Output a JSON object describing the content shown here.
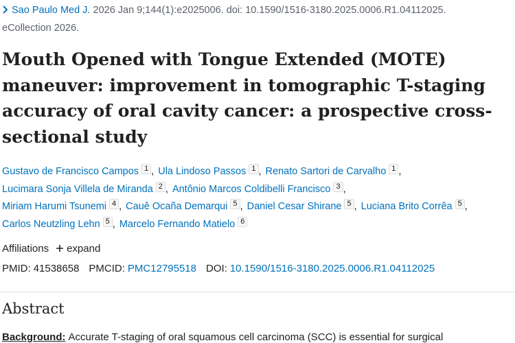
{
  "citation": {
    "journal": "Sao Paulo Med J.",
    "details": "2026 Jan 9;144(1):e2025006. doi: 10.1590/1516-3180.2025.0006.R1.04112025.",
    "ecollection": "eCollection 2026."
  },
  "title": "Mouth Opened with Tongue Extended (MOTE) maneuver: improvement in tomographic T-staging accuracy of oral cavity cancer: a prospective cross-sectional study",
  "authors": [
    {
      "name": "Gustavo de Francisco Campos",
      "affiliation": 1
    },
    {
      "name": "Ula Lindoso Passos",
      "affiliation": 1
    },
    {
      "name": "Renato Sartori de Carvalho",
      "affiliation": 1
    },
    {
      "name": "Lucimara Sonja Villela de Miranda",
      "affiliation": 2
    },
    {
      "name": "Antônio Marcos Coldibelli Francisco",
      "affiliation": 3
    },
    {
      "name": "Miriam Harumi Tsunemi",
      "affiliation": 4
    },
    {
      "name": "Cauê Ocaña Demarqui",
      "affiliation": 5
    },
    {
      "name": "Daniel Cesar Shirane",
      "affiliation": 5
    },
    {
      "name": "Luciana Brito Corrêa",
      "affiliation": 5
    },
    {
      "name": "Carlos Neutzling Lehn",
      "affiliation": 5
    },
    {
      "name": "Marcelo Fernando Matielo",
      "affiliation": 6
    }
  ],
  "affiliations": {
    "label": "Affiliations",
    "toggle": "expand"
  },
  "identifiers": [
    {
      "label": "PMID:",
      "value": "41538658"
    },
    {
      "label": "PMCID:",
      "value": "PMC12795518"
    },
    {
      "label": "DOI:",
      "value": "10.1590/1516-3180.2025.0006.R1.04112025"
    }
  ],
  "abstract": {
    "heading": "Abstract",
    "sections": [
      {
        "label": "Background:",
        "text": "Accurate T-staging of oral squamous cell carcinoma (SCC) is essential for surgical"
      }
    ]
  }
}
